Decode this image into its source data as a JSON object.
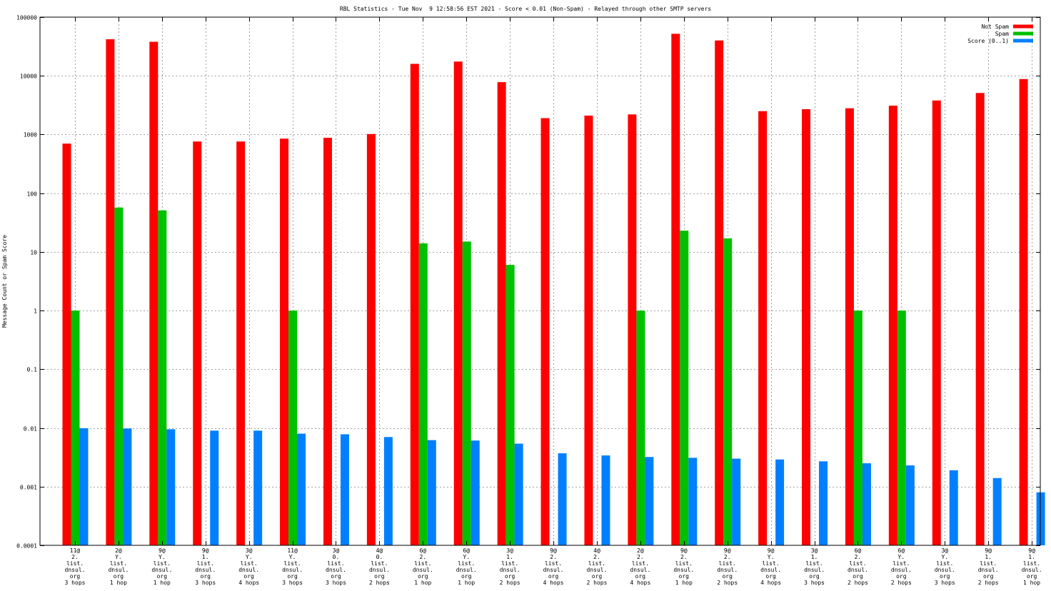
{
  "chart_data": {
    "type": "bar",
    "title": "RBL Statistics - Tue Nov  9 12:58:56 EST 2021 - Score < 0.01 (Non-Spam) - Relayed through other SMTP servers",
    "xlabel": "",
    "ylabel": "Message Count or Spam Score",
    "yscale": "log",
    "ylim": [
      0.0001,
      100000
    ],
    "yticks": [
      "0.0001",
      "0.001",
      "0.01",
      "0.1",
      "1",
      "10",
      "100",
      "1000",
      "10000",
      "100000"
    ],
    "grid": true,
    "legend_position": "top-right",
    "categories": [
      [
        "11@",
        "2.",
        "list.",
        "dnsul.",
        "org",
        "3 hops"
      ],
      [
        "2@",
        "Y.",
        "list.",
        "dnsul.",
        "org",
        "1 hop"
      ],
      [
        "9@",
        "Y.",
        "list.",
        "dnsul.",
        "org",
        "1 hop"
      ],
      [
        "9@",
        "1.",
        "list.",
        "dnsul.",
        "org",
        "3 hops"
      ],
      [
        "3@",
        "Y.",
        "list.",
        "dnsul.",
        "org",
        "4 hops"
      ],
      [
        "11@",
        "Y.",
        "list.",
        "dnsul.",
        "org",
        "3 hops"
      ],
      [
        "3@",
        "0.",
        "list.",
        "dnsul.",
        "org",
        "3 hops"
      ],
      [
        "4@",
        "0.",
        "list.",
        "dnsul.",
        "org",
        "2 hops"
      ],
      [
        "6@",
        "2.",
        "list.",
        "dnsul.",
        "org",
        "1 hop"
      ],
      [
        "6@",
        "Y.",
        "list.",
        "dnsul.",
        "org",
        "1 hop"
      ],
      [
        "3@",
        "1.",
        "list.",
        "dnsul.",
        "org",
        "2 hops"
      ],
      [
        "9@",
        "2.",
        "list.",
        "dnsul.",
        "org",
        "4 hops"
      ],
      [
        "4@",
        "2.",
        "list.",
        "dnsul.",
        "org",
        "2 hops"
      ],
      [
        "2@",
        "2.",
        "list.",
        "dnsul.",
        "org",
        "4 hops"
      ],
      [
        "9@",
        "2.",
        "list.",
        "dnsul.",
        "org",
        "1 hop"
      ],
      [
        "9@",
        "2.",
        "list.",
        "dnsul.",
        "org",
        "2 hops"
      ],
      [
        "9@",
        "Y.",
        "list.",
        "dnsul.",
        "org",
        "4 hops"
      ],
      [
        "3@",
        "1.",
        "list.",
        "dnsul.",
        "org",
        "3 hops"
      ],
      [
        "6@",
        "2.",
        "list.",
        "dnsul.",
        "org",
        "2 hops"
      ],
      [
        "6@",
        "Y.",
        "list.",
        "dnsul.",
        "org",
        "2 hops"
      ],
      [
        "3@",
        "Y.",
        "list.",
        "dnsul.",
        "org",
        "3 hops"
      ],
      [
        "9@",
        "1.",
        "list.",
        "dnsul.",
        "org",
        "2 hops"
      ],
      [
        "9@",
        "1.",
        "list.",
        "dnsul.",
        "org",
        "1 hop"
      ]
    ],
    "series": [
      {
        "name": "Not Spam",
        "color": "#ff0000",
        "values": [
          700,
          42000,
          38000,
          760,
          760,
          850,
          880,
          1020,
          16000,
          17500,
          7800,
          1900,
          2100,
          2200,
          52000,
          40000,
          2500,
          2700,
          2800,
          3100,
          3800,
          5100,
          8800
        ]
      },
      {
        "name": "Spam",
        "color": "#00c000",
        "values": [
          1,
          57,
          51,
          null,
          null,
          1,
          null,
          null,
          14,
          15,
          6,
          null,
          null,
          1,
          23,
          17,
          null,
          null,
          1,
          1,
          null,
          null,
          null
        ]
      },
      {
        "name": "Score (0..1)",
        "color": "#0080ff",
        "values": [
          0.0099,
          0.0098,
          0.0095,
          0.009,
          0.009,
          0.008,
          0.0078,
          0.007,
          0.0062,
          0.0061,
          0.0054,
          0.0037,
          0.0034,
          0.0032,
          0.0031,
          0.003,
          0.0029,
          0.0027,
          0.0025,
          0.0023,
          0.0019,
          0.0014,
          0.0008
        ]
      }
    ]
  }
}
